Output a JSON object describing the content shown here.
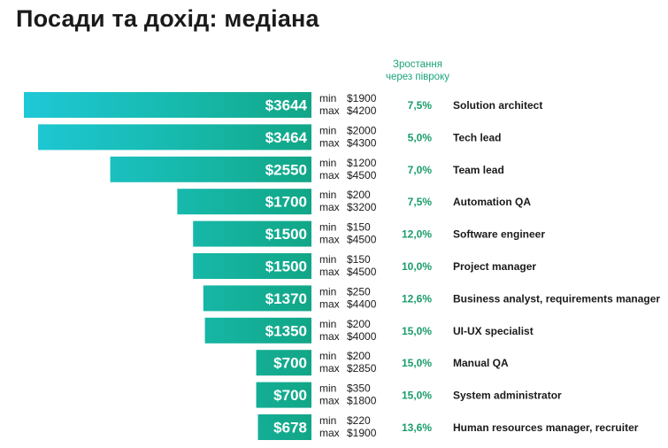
{
  "title": "Посади та дохід: медіана",
  "growth_header": [
    "Зростання",
    "через півроку"
  ],
  "labels": {
    "min": "min",
    "max": "max"
  },
  "colors": {
    "bar_start": "#1ec8d6",
    "bar_mid": "#17b9ac",
    "bar_end": "#11a686",
    "growth_text": "#1a9c6a",
    "header_text": "#1aa37a"
  },
  "chart_data": {
    "type": "bar",
    "orientation": "horizontal",
    "title": "Посади та дохід: медіана",
    "categories": [
      "Solution architect",
      "Tech lead",
      "Team lead",
      "Automation QA",
      "Software engineer",
      "Project manager",
      "Business analyst, requirements manager",
      "UI-UX specialist",
      "Manual QA",
      "System administrator",
      "Human resources manager, recruiter"
    ],
    "values": [
      3644,
      3464,
      2550,
      1700,
      1500,
      1500,
      1370,
      1350,
      700,
      700,
      678
    ],
    "value_labels": [
      "$3644",
      "$3464",
      "$2550",
      "$1700",
      "$1500",
      "$1500",
      "$1370",
      "$1350",
      "$700",
      "$700",
      "$678"
    ],
    "min": [
      "$1900",
      "$2000",
      "$1200",
      "$200",
      "$150",
      "$150",
      "$250",
      "$200",
      "$200",
      "$350",
      "$220"
    ],
    "max": [
      "$4200",
      "$4300",
      "$4500",
      "$3200",
      "$4500",
      "$4500",
      "$4400",
      "$4000",
      "$2850",
      "$1800",
      "$1900"
    ],
    "growth": [
      "7,5%",
      "5,0%",
      "7,0%",
      "7,5%",
      "12,0%",
      "10,0%",
      "12,6%",
      "15,0%",
      "15,0%",
      "15,0%",
      "13,6%"
    ],
    "growth_header": "Зростання через півроку",
    "xlim": [
      0,
      3644
    ],
    "grid": false,
    "legend": "none"
  }
}
